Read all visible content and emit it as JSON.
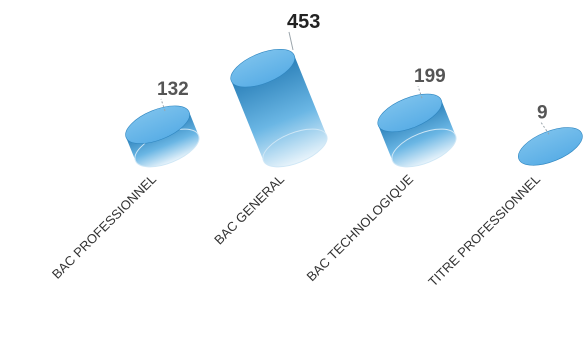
{
  "chart_data": {
    "type": "bar",
    "style": "3d-cylinder",
    "categories": [
      "BAC PROFESSIONNEL",
      "BAC GENERAL",
      "BAC TECHNOLOGIQUE",
      "TITRE PROFESSIONNEL"
    ],
    "values": [
      132,
      453,
      199,
      9
    ],
    "title": "",
    "xlabel": "",
    "ylabel": "",
    "grid": false,
    "legend": "none",
    "colors": {
      "top": "#5aaee6",
      "side_dark": "#2a7fb8",
      "side_light": "#e9f4fb",
      "label": "#555555",
      "label_max": "#222222",
      "category": "#333333"
    }
  }
}
